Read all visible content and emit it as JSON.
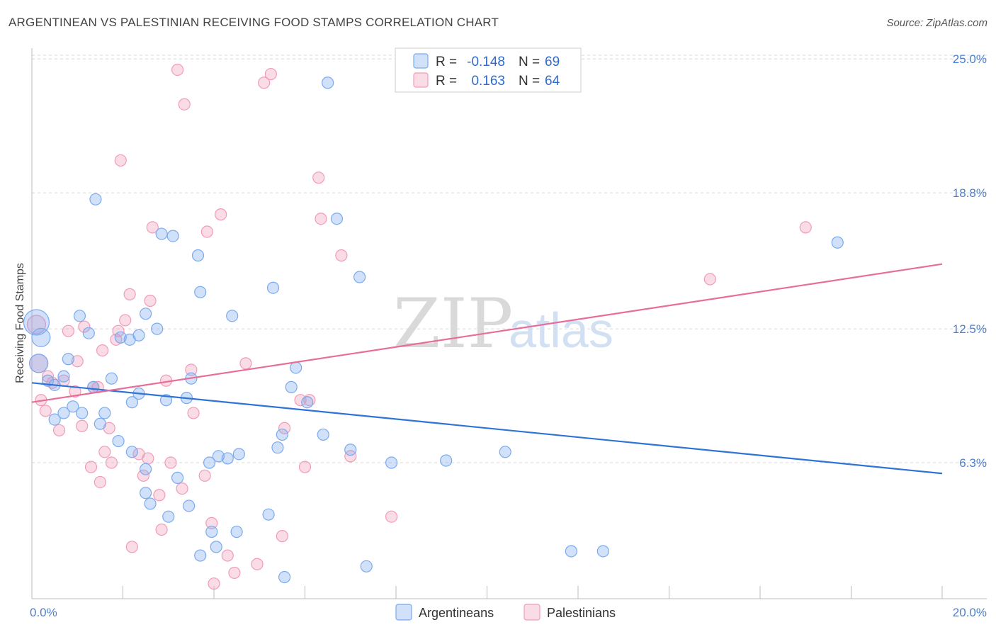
{
  "title": "ARGENTINEAN VS PALESTINIAN RECEIVING FOOD STAMPS CORRELATION CHART",
  "source": "Source: ZipAtlas.com",
  "watermark": {
    "zip": "ZIP",
    "atlas": "atlas"
  },
  "legend": {
    "rows": [
      {
        "r_label": "R =",
        "r_value": "-0.148",
        "n_label": "N =",
        "n_value": "69"
      },
      {
        "r_label": "R =",
        "r_value": "0.163",
        "n_label": "N =",
        "n_value": "64"
      }
    ]
  },
  "bottom_legend": [
    "Argentineans",
    "Palestinians"
  ],
  "chart_data": {
    "type": "scatter",
    "title": "ARGENTINEAN VS PALESTINIAN RECEIVING FOOD STAMPS CORRELATION CHART",
    "xlabel": "",
    "ylabel": "Receiving Food Stamps",
    "xlim": [
      0,
      20
    ],
    "ylim": [
      0,
      25.5
    ],
    "x_tick_labels": [
      "0.0%",
      "20.0%"
    ],
    "y_tick_values": [
      6.3,
      12.5,
      18.8,
      25.0
    ],
    "y_tick_labels": [
      "6.3%",
      "12.5%",
      "18.8%",
      "25.0%"
    ],
    "colors": {
      "argentineans": "#7aaaf0",
      "palestinians": "#f29bb8",
      "arg_line": "#2f73d6",
      "pal_line": "#e86d98"
    },
    "series": [
      {
        "name": "Argentineans",
        "r": -0.148,
        "n": 69,
        "trend": {
          "x0": 0,
          "y0": 10.0,
          "x1": 20,
          "y1": 5.8
        },
        "points": [
          [
            0.1,
            12.8,
            34
          ],
          [
            0.2,
            12.1,
            24
          ],
          [
            0.15,
            10.9,
            24
          ],
          [
            0.35,
            10.1,
            14
          ],
          [
            0.5,
            9.9,
            14
          ],
          [
            0.8,
            11.1,
            14
          ],
          [
            1.05,
            13.1,
            14
          ],
          [
            1.25,
            12.3,
            14
          ],
          [
            1.4,
            18.5,
            14
          ],
          [
            0.7,
            8.6,
            14
          ],
          [
            0.5,
            8.3,
            14
          ],
          [
            0.9,
            8.9,
            14
          ],
          [
            1.1,
            8.6,
            14
          ],
          [
            1.5,
            8.1,
            14
          ],
          [
            1.6,
            8.6,
            14
          ],
          [
            1.75,
            10.2,
            14
          ],
          [
            1.35,
            9.8,
            14
          ],
          [
            1.95,
            12.1,
            14
          ],
          [
            2.15,
            12.0,
            14
          ],
          [
            2.35,
            12.2,
            14
          ],
          [
            2.5,
            13.2,
            14
          ],
          [
            2.75,
            12.5,
            14
          ],
          [
            2.85,
            16.9,
            14
          ],
          [
            3.1,
            16.8,
            14
          ],
          [
            3.65,
            15.9,
            14
          ],
          [
            3.7,
            14.2,
            14
          ],
          [
            1.9,
            7.3,
            14
          ],
          [
            2.2,
            9.1,
            14
          ],
          [
            2.35,
            9.5,
            14
          ],
          [
            2.2,
            6.8,
            14
          ],
          [
            2.5,
            6.0,
            14
          ],
          [
            2.5,
            4.9,
            14
          ],
          [
            2.6,
            4.4,
            14
          ],
          [
            2.95,
            9.2,
            14
          ],
          [
            3.0,
            3.8,
            14
          ],
          [
            3.2,
            5.6,
            14
          ],
          [
            3.4,
            9.3,
            14
          ],
          [
            3.45,
            4.3,
            14
          ],
          [
            3.5,
            10.2,
            14
          ],
          [
            3.7,
            2.0,
            14
          ],
          [
            3.9,
            6.3,
            14
          ],
          [
            3.95,
            3.1,
            14
          ],
          [
            4.1,
            6.6,
            14
          ],
          [
            4.3,
            6.5,
            14
          ],
          [
            4.05,
            2.4,
            14
          ],
          [
            4.4,
            13.1,
            14
          ],
          [
            4.55,
            6.7,
            14
          ],
          [
            4.5,
            3.1,
            14
          ],
          [
            5.2,
            3.9,
            14
          ],
          [
            5.3,
            14.4,
            14
          ],
          [
            5.4,
            7.0,
            14
          ],
          [
            5.5,
            7.6,
            14
          ],
          [
            5.55,
            1.0,
            14
          ],
          [
            5.7,
            9.8,
            14
          ],
          [
            5.8,
            10.7,
            14
          ],
          [
            6.05,
            9.1,
            14
          ],
          [
            6.4,
            7.6,
            14
          ],
          [
            6.5,
            23.9,
            14
          ],
          [
            6.7,
            17.6,
            14
          ],
          [
            7.0,
            6.9,
            14
          ],
          [
            7.2,
            14.9,
            14
          ],
          [
            7.35,
            1.5,
            14
          ],
          [
            7.9,
            6.3,
            14
          ],
          [
            9.1,
            6.4,
            14
          ],
          [
            10.4,
            6.8,
            14
          ],
          [
            11.85,
            2.2,
            14
          ],
          [
            12.55,
            2.2,
            14
          ],
          [
            17.7,
            16.5,
            14
          ],
          [
            0.7,
            10.3,
            14
          ]
        ]
      },
      {
        "name": "Palestinians",
        "r": 0.163,
        "n": 64,
        "trend": {
          "x0": 0,
          "y0": 9.1,
          "x1": 20,
          "y1": 15.5
        },
        "points": [
          [
            0.1,
            12.7,
            24
          ],
          [
            0.15,
            10.9,
            24
          ],
          [
            0.2,
            9.2,
            14
          ],
          [
            0.3,
            8.7,
            14
          ],
          [
            0.35,
            10.3,
            14
          ],
          [
            0.45,
            10.0,
            14
          ],
          [
            0.6,
            7.8,
            14
          ],
          [
            0.7,
            10.1,
            14
          ],
          [
            0.8,
            12.4,
            14
          ],
          [
            0.95,
            9.6,
            14
          ],
          [
            1.0,
            11.0,
            14
          ],
          [
            1.1,
            8.0,
            14
          ],
          [
            1.15,
            12.6,
            14
          ],
          [
            1.3,
            6.1,
            14
          ],
          [
            1.35,
            9.8,
            14
          ],
          [
            1.5,
            5.4,
            14
          ],
          [
            1.55,
            11.5,
            14
          ],
          [
            1.6,
            6.8,
            14
          ],
          [
            1.7,
            7.9,
            14
          ],
          [
            1.75,
            6.3,
            14
          ],
          [
            1.85,
            12.0,
            14
          ],
          [
            1.9,
            12.4,
            14
          ],
          [
            1.95,
            20.3,
            14
          ],
          [
            2.05,
            12.9,
            14
          ],
          [
            2.15,
            14.1,
            14
          ],
          [
            2.2,
            2.4,
            14
          ],
          [
            2.35,
            6.7,
            14
          ],
          [
            2.45,
            5.7,
            14
          ],
          [
            2.55,
            6.5,
            14
          ],
          [
            2.6,
            13.8,
            14
          ],
          [
            2.65,
            17.2,
            14
          ],
          [
            2.8,
            4.8,
            14
          ],
          [
            2.85,
            3.2,
            14
          ],
          [
            2.95,
            10.1,
            14
          ],
          [
            3.05,
            6.3,
            14
          ],
          [
            3.2,
            24.5,
            14
          ],
          [
            3.3,
            5.1,
            14
          ],
          [
            3.35,
            22.9,
            14
          ],
          [
            3.5,
            10.6,
            14
          ],
          [
            3.55,
            8.6,
            14
          ],
          [
            3.8,
            5.7,
            14
          ],
          [
            3.85,
            17.0,
            14
          ],
          [
            3.95,
            3.5,
            14
          ],
          [
            4.0,
            0.7,
            14
          ],
          [
            4.15,
            17.8,
            14
          ],
          [
            4.3,
            2.0,
            14
          ],
          [
            4.45,
            1.2,
            14
          ],
          [
            4.7,
            10.9,
            14
          ],
          [
            4.95,
            1.6,
            14
          ],
          [
            5.1,
            23.9,
            14
          ],
          [
            5.25,
            24.3,
            14
          ],
          [
            5.5,
            2.9,
            14
          ],
          [
            5.55,
            7.9,
            14
          ],
          [
            5.9,
            9.2,
            14
          ],
          [
            6.0,
            6.1,
            14
          ],
          [
            6.1,
            9.2,
            14
          ],
          [
            6.3,
            19.5,
            14
          ],
          [
            6.35,
            17.6,
            14
          ],
          [
            6.8,
            15.9,
            14
          ],
          [
            7.0,
            6.6,
            14
          ],
          [
            7.9,
            3.8,
            14
          ],
          [
            14.9,
            14.8,
            14
          ],
          [
            17.0,
            17.2,
            14
          ],
          [
            1.45,
            9.8,
            14
          ]
        ]
      }
    ]
  }
}
